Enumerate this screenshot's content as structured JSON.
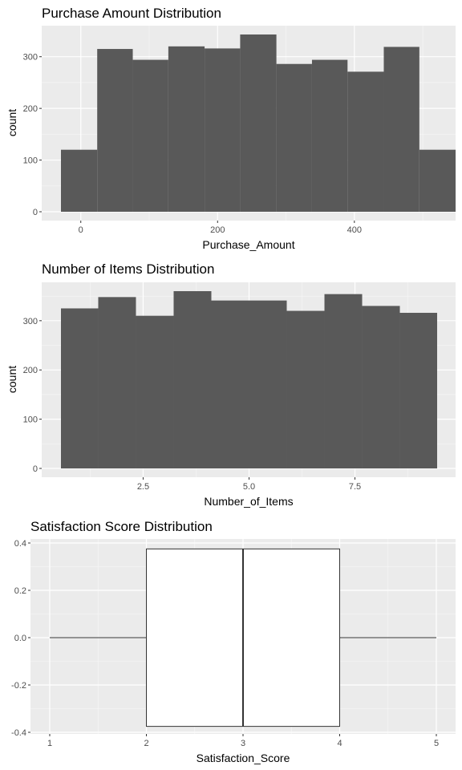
{
  "chart_data": [
    {
      "type": "bar",
      "title": "Purchase Amount Distribution",
      "xlabel": "Purchase_Amount",
      "ylabel": "count",
      "xlim": [
        -29,
        521
      ],
      "ylim": [
        0,
        343
      ],
      "xticks": [
        0,
        200,
        400
      ],
      "yticks": [
        0,
        100,
        200,
        300
      ],
      "bins": [
        {
          "x0": -29,
          "x1": 24,
          "count": 120
        },
        {
          "x0": 24,
          "x1": 76,
          "count": 315
        },
        {
          "x0": 76,
          "x1": 128,
          "count": 294
        },
        {
          "x0": 128,
          "x1": 181,
          "count": 320
        },
        {
          "x0": 181,
          "x1": 233,
          "count": 316
        },
        {
          "x0": 233,
          "x1": 286,
          "count": 343
        },
        {
          "x0": 286,
          "x1": 338,
          "count": 286
        },
        {
          "x0": 338,
          "x1": 390,
          "count": 294
        },
        {
          "x0": 390,
          "x1": 443,
          "count": 271
        },
        {
          "x0": 443,
          "x1": 495,
          "count": 319
        },
        {
          "x0": 495,
          "x1": 548,
          "count": 120
        }
      ],
      "colors": {
        "bar": "#595959",
        "panel": "#ebebeb"
      }
    },
    {
      "type": "bar",
      "title": "Number of Items Distribution",
      "xlabel": "Number_of_Items",
      "ylabel": "count",
      "xlim": [
        0.56,
        9.44
      ],
      "ylim": [
        0,
        360
      ],
      "xticks": [
        2.5,
        5.0,
        7.5
      ],
      "xtick_labels": [
        "2.5",
        "5.0",
        "7.5"
      ],
      "yticks": [
        0,
        100,
        200,
        300
      ],
      "bins": [
        {
          "x0": 0.56,
          "x1": 1.44,
          "count": 325
        },
        {
          "x0": 1.44,
          "x1": 2.33,
          "count": 348
        },
        {
          "x0": 2.33,
          "x1": 3.22,
          "count": 310
        },
        {
          "x0": 3.22,
          "x1": 4.11,
          "count": 360
        },
        {
          "x0": 4.11,
          "x1": 5.0,
          "count": 341
        },
        {
          "x0": 5.0,
          "x1": 5.89,
          "count": 341
        },
        {
          "x0": 5.89,
          "x1": 6.78,
          "count": 320
        },
        {
          "x0": 6.78,
          "x1": 7.67,
          "count": 354
        },
        {
          "x0": 7.67,
          "x1": 8.56,
          "count": 330
        },
        {
          "x0": 8.56,
          "x1": 9.44,
          "count": 316
        }
      ],
      "colors": {
        "bar": "#595959",
        "panel": "#ebebeb"
      }
    },
    {
      "type": "box",
      "title": "Satisfaction Score Distribution",
      "xlabel": "Satisfaction_Score",
      "ylabel": "",
      "xlim": [
        0.8,
        5.2
      ],
      "ylim": [
        -0.4,
        0.4
      ],
      "xticks": [
        1,
        2,
        3,
        4,
        5
      ],
      "yticks": [
        -0.4,
        -0.2,
        0.0,
        0.2,
        0.4
      ],
      "ytick_labels": [
        "-0.4",
        "-0.2",
        "0.0",
        "0.2",
        "0.4"
      ],
      "box": {
        "min": 1,
        "q1": 2,
        "median": 3,
        "q3": 4,
        "max": 5,
        "ymin": -0.375,
        "ymax": 0.375
      },
      "colors": {
        "box_fill": "#ffffff",
        "line": "#333333",
        "panel": "#ebebeb"
      }
    }
  ]
}
